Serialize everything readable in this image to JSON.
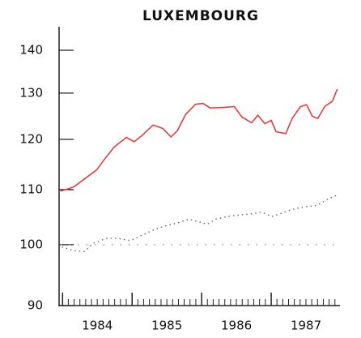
{
  "chart_data": {
    "type": "line",
    "title": "LUXEMBOURG",
    "log_y": true,
    "xlim": [
      1983.95,
      1988.0
    ],
    "ylim": [
      90,
      145
    ],
    "yticks": [
      90,
      100,
      110,
      120,
      130,
      140
    ],
    "xticks": [
      1984,
      1985,
      1986,
      1987
    ],
    "xtick_labels": [
      {
        "value": 1984.5,
        "label": "1984"
      },
      {
        "value": 1985.5,
        "label": "1985"
      },
      {
        "value": 1986.5,
        "label": "1986"
      },
      {
        "value": 1987.5,
        "label": "1987"
      }
    ],
    "xminor_step": 0.0833333,
    "reference_line": {
      "value": 100,
      "color": "#888888"
    },
    "series": [
      {
        "color": "#e04040",
        "style": "solid",
        "x": [
          1983.97,
          1984.16,
          1984.34,
          1984.49,
          1984.6,
          1984.74,
          1984.92,
          1985.03,
          1985.15,
          1985.3,
          1985.44,
          1985.56,
          1985.65,
          1985.77,
          1985.91,
          1986.02,
          1986.12,
          1986.31,
          1986.47,
          1986.58,
          1986.72,
          1986.81,
          1986.91,
          1987.0,
          1987.07,
          1987.21,
          1987.3,
          1987.42,
          1987.51,
          1987.59,
          1987.67,
          1987.77,
          1987.88,
          1987.95
        ],
        "values": [
          109.7,
          110.5,
          112.3,
          113.8,
          115.9,
          118.4,
          120.4,
          119.5,
          120.9,
          123,
          122.3,
          120.5,
          121.8,
          125.3,
          127.5,
          127.7,
          126.7,
          126.8,
          127,
          124.7,
          123.5,
          125.1,
          123.3,
          124,
          121.6,
          121.2,
          124.4,
          127,
          127.4,
          124.9,
          124.4,
          127,
          128.2,
          130.9
        ]
      },
      {
        "color": "#666666",
        "style": "dotted",
        "x": [
          1983.99,
          1984.16,
          1984.31,
          1984.45,
          1984.63,
          1984.8,
          1984.98,
          1985.15,
          1985.33,
          1985.5,
          1985.67,
          1985.81,
          1985.97,
          1986.08,
          1986.2,
          1986.37,
          1986.55,
          1986.72,
          1986.86,
          1987.01,
          1987.13,
          1987.3,
          1987.48,
          1987.65,
          1987.83,
          1987.95
        ],
        "values": [
          99.6,
          99,
          98.8,
          100.3,
          101.1,
          101.1,
          100.7,
          101.7,
          102.7,
          103.4,
          103.9,
          104.5,
          104,
          103.6,
          104.5,
          105,
          105.3,
          105.5,
          105.8,
          105,
          105.5,
          106.3,
          106.8,
          107,
          108.3,
          109
        ]
      }
    ]
  }
}
